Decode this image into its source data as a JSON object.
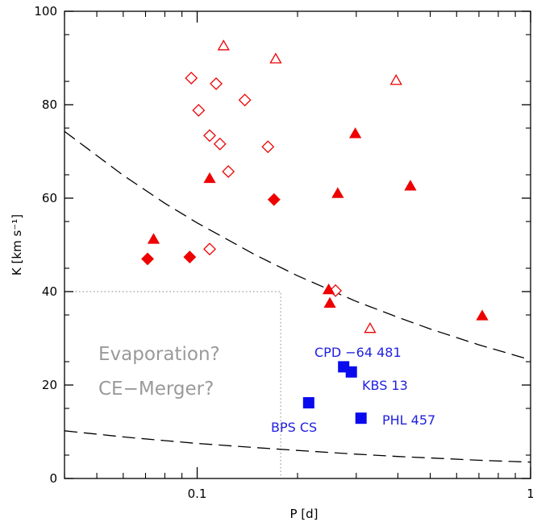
{
  "chart_data": {
    "type": "scatter",
    "title": "",
    "xlabel": "P [d]",
    "ylabel": "K [km s⁻¹]",
    "x_scale": "log",
    "xlim": [
      0.04,
      1.0
    ],
    "ylim": [
      0,
      100
    ],
    "x_ticks": [
      {
        "value": 0.1,
        "label": "0.1"
      },
      {
        "value": 1.0,
        "label": "1"
      }
    ],
    "y_ticks": [
      {
        "value": 0,
        "label": "0"
      },
      {
        "value": 20,
        "label": "20"
      },
      {
        "value": 40,
        "label": "40"
      },
      {
        "value": 60,
        "label": "60"
      },
      {
        "value": 80,
        "label": "80"
      },
      {
        "value": 100,
        "label": "100"
      }
    ],
    "grid": false,
    "legend": "none",
    "colors": {
      "red": "#ee0000",
      "blue": "#0a0aee",
      "label_blue": "#1f1fe0",
      "gray": "#9a9a9a"
    },
    "series": [
      {
        "marker": "open-diamond",
        "color": "#ee0000",
        "points": [
          {
            "x": 0.096,
            "y": 85.7
          },
          {
            "x": 0.114,
            "y": 84.5
          },
          {
            "x": 0.139,
            "y": 81.0
          },
          {
            "x": 0.101,
            "y": 78.8
          },
          {
            "x": 0.109,
            "y": 73.4
          },
          {
            "x": 0.117,
            "y": 71.6
          },
          {
            "x": 0.163,
            "y": 71.0
          },
          {
            "x": 0.124,
            "y": 65.7
          },
          {
            "x": 0.109,
            "y": 49.1
          },
          {
            "x": 0.26,
            "y": 40.2
          }
        ]
      },
      {
        "marker": "filled-diamond",
        "color": "#ee0000",
        "points": [
          {
            "x": 0.071,
            "y": 47.0
          },
          {
            "x": 0.095,
            "y": 47.4
          },
          {
            "x": 0.17,
            "y": 59.7
          }
        ]
      },
      {
        "marker": "open-triangle",
        "color": "#ee0000",
        "points": [
          {
            "x": 0.12,
            "y": 92.6
          },
          {
            "x": 0.172,
            "y": 89.8
          },
          {
            "x": 0.395,
            "y": 85.2
          },
          {
            "x": 0.33,
            "y": 32.1
          }
        ]
      },
      {
        "marker": "filled-triangle",
        "color": "#ee0000",
        "points": [
          {
            "x": 0.074,
            "y": 51.2
          },
          {
            "x": 0.109,
            "y": 64.2
          },
          {
            "x": 0.298,
            "y": 73.8
          },
          {
            "x": 0.264,
            "y": 61.0
          },
          {
            "x": 0.436,
            "y": 62.6
          },
          {
            "x": 0.248,
            "y": 40.4
          },
          {
            "x": 0.25,
            "y": 37.5
          },
          {
            "x": 0.716,
            "y": 34.8
          }
        ]
      },
      {
        "marker": "filled-square",
        "color": "#0a0aee",
        "points": [
          {
            "x": 0.275,
            "y": 23.9
          },
          {
            "x": 0.29,
            "y": 22.8
          },
          {
            "x": 0.216,
            "y": 16.2
          },
          {
            "x": 0.31,
            "y": 12.9
          }
        ]
      }
    ],
    "curves": [
      {
        "style": "dashed",
        "x": [
          0.04,
          0.06,
          0.08,
          0.1,
          0.15,
          0.2,
          0.3,
          0.4,
          0.5,
          0.7,
          1.0
        ],
        "y": [
          74.3,
          64.9,
          58.9,
          54.7,
          47.8,
          43.4,
          37.9,
          34.5,
          32.0,
          28.6,
          25.4
        ]
      },
      {
        "style": "dashed",
        "x": [
          0.04,
          0.06,
          0.08,
          0.1,
          0.15,
          0.2,
          0.3,
          0.4,
          0.5,
          0.7,
          1.0
        ],
        "y": [
          10.2,
          8.9,
          8.1,
          7.5,
          6.6,
          6.0,
          5.2,
          4.7,
          4.4,
          3.9,
          3.5
        ]
      }
    ],
    "region": {
      "style": "dotted",
      "x_max": 0.178,
      "y_max": 40,
      "labels": [
        "Evaporation?",
        "CE−Merger?"
      ]
    },
    "annotations": [
      {
        "text": "CPD −64 481"
      },
      {
        "text": "KBS 13"
      },
      {
        "text": "BPS CS"
      },
      {
        "text": "PHL 457"
      }
    ]
  }
}
